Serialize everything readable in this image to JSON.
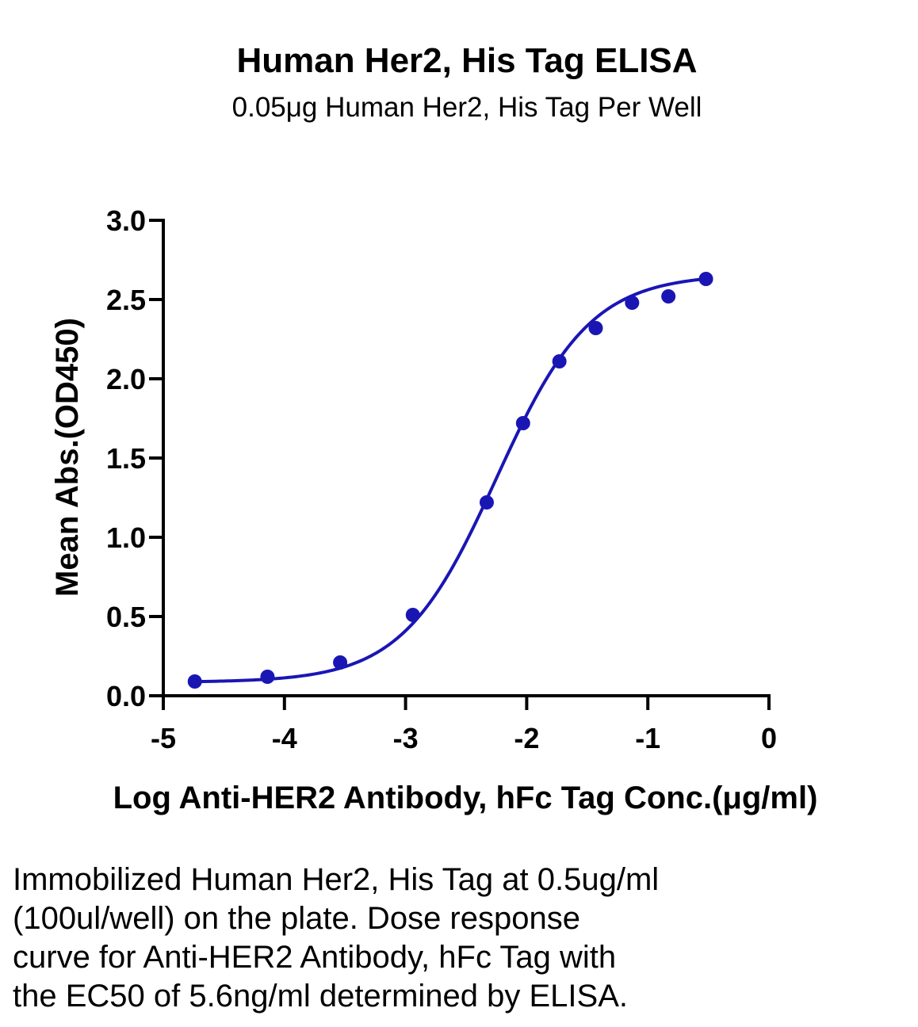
{
  "chart_data": {
    "type": "scatter",
    "title": "Human Her2, His Tag ELISA",
    "subtitle": "0.05μg Human Her2, His Tag Per Well",
    "xlabel": "Log Anti-HER2 Antibody, hFc Tag Conc.(μg/ml)",
    "ylabel": "Mean Abs.(OD450)",
    "xlim": [
      -5,
      0
    ],
    "ylim": [
      0,
      3
    ],
    "x_ticks": [
      -5,
      -4,
      -3,
      -2,
      -1,
      0
    ],
    "x_tick_labels": [
      "-5",
      "-4",
      "-3",
      "-2",
      "-1",
      "0"
    ],
    "y_ticks": [
      0,
      0.5,
      1,
      1.5,
      2,
      2.5,
      3
    ],
    "y_tick_labels": [
      "0.0",
      "0.5",
      "1.0",
      "1.5",
      "2.0",
      "2.5",
      "3.0"
    ],
    "series_color": "#1a16b4",
    "points": {
      "x": [
        -4.74,
        -4.14,
        -3.54,
        -2.94,
        -2.33,
        -1.73,
        -2.03,
        -1.43,
        -1.13,
        -0.83,
        -0.52
      ],
      "y": [
        0.09,
        0.12,
        0.21,
        0.51,
        1.22,
        2.11,
        1.72,
        2.32,
        2.48,
        2.52,
        2.63
      ]
    },
    "fit_curve": {
      "model": "4PL",
      "bottom": 0.085,
      "top": 2.66,
      "log_ec50": -2.25,
      "hill_slope": 1.12
    }
  },
  "caption": {
    "lines": [
      "Immobilized Human Her2, His Tag at 0.5ug/ml",
      "(100ul/well) on the plate. Dose response",
      "curve for Anti-HER2 Antibody, hFc Tag with",
      "the EC50 of 5.6ng/ml determined by ELISA."
    ]
  }
}
